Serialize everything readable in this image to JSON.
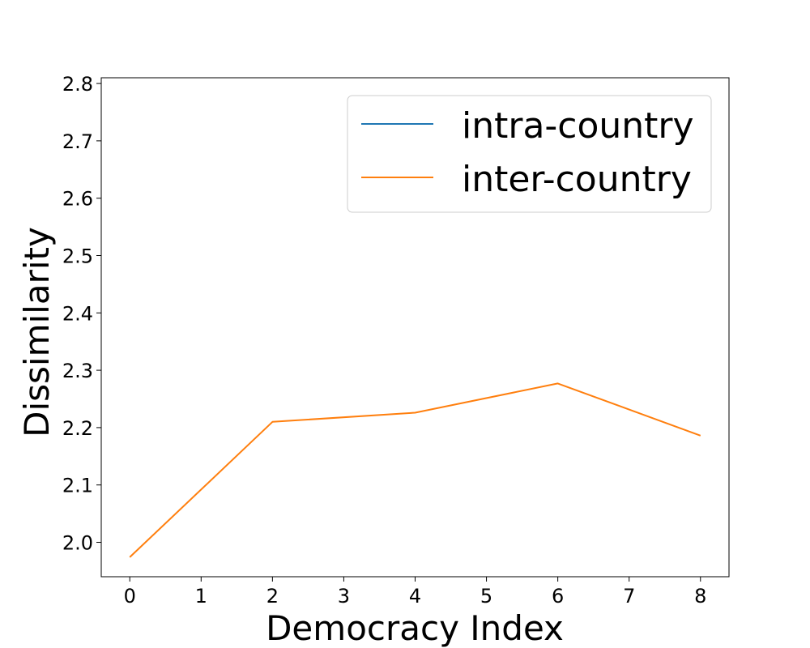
{
  "chart_data": {
    "type": "line",
    "xlabel": "Democracy Index",
    "ylabel": "Dissimilarity",
    "xlim": [
      -0.4,
      8.4
    ],
    "ylim": [
      1.94,
      2.81
    ],
    "xticks": [
      0,
      1,
      2,
      3,
      4,
      5,
      6,
      7,
      8
    ],
    "yticks": [
      2.0,
      2.1,
      2.2,
      2.3,
      2.4,
      2.5,
      2.6,
      2.7,
      2.8
    ],
    "grid": false,
    "legend_position": "top-right",
    "series": [
      {
        "name": "intra-country",
        "color": "#1f77b4",
        "x": [],
        "y": []
      },
      {
        "name": "inter-country",
        "color": "#ff7f0e",
        "x": [
          0,
          2,
          4,
          6,
          8
        ],
        "y": [
          1.974,
          2.21,
          2.226,
          2.277,
          2.186
        ]
      }
    ]
  }
}
